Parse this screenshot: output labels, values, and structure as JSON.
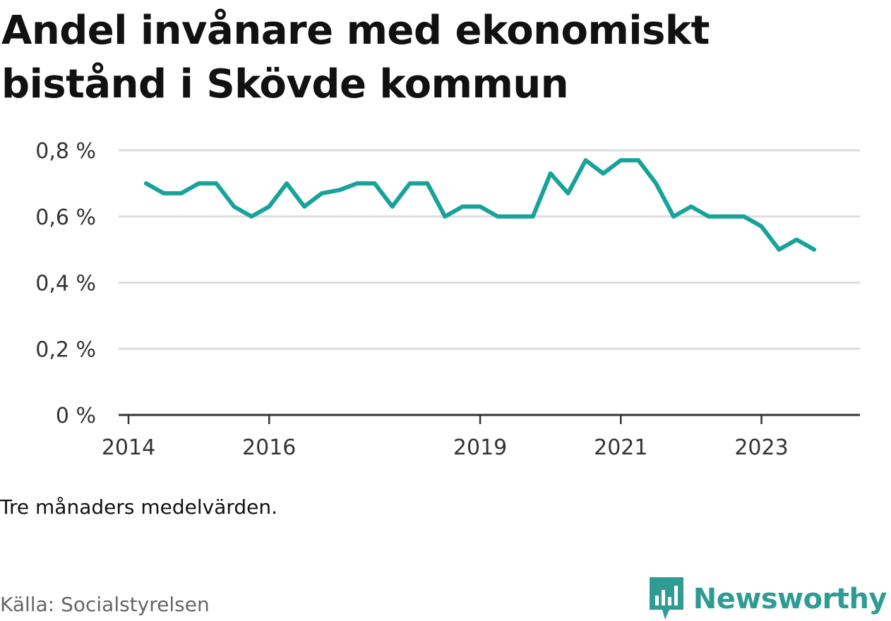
{
  "title": "Andel invånare med ekonomiskt bistånd i Skövde kommun",
  "note": "Tre månaders medelvärden.",
  "source": "Källa: Socialstyrelsen",
  "brand": {
    "name": "Newsworthy",
    "icon": "newsworthy-chart-bubble-icon"
  },
  "colors": {
    "line": "#17a39a",
    "grid": "#dddddd",
    "axis": "#333333",
    "brand": "#2f9c94"
  },
  "chart_data": {
    "type": "line",
    "title": "Andel invånare med ekonomiskt bistånd i Skövde kommun",
    "xlabel": "",
    "ylabel": "",
    "ylim": [
      0,
      0.8
    ],
    "y_ticks": [
      0,
      0.2,
      0.4,
      0.6,
      0.8
    ],
    "y_tick_labels": [
      "0 %",
      "0,2 %",
      "0,4 %",
      "0,6 %",
      "0,8 %"
    ],
    "x_ticks": [
      2014,
      2016,
      2019,
      2021,
      2023
    ],
    "x_tick_labels": [
      "2014",
      "2016",
      "2019",
      "2021",
      "2023"
    ],
    "grid": true,
    "series": [
      {
        "x": [
          2014.25,
          2014.5,
          2014.75,
          2015.0,
          2015.25,
          2015.5,
          2015.75,
          2016.0,
          2016.25,
          2016.5,
          2016.75,
          2017.0,
          2017.25,
          2017.5,
          2017.75,
          2018.0,
          2018.25,
          2018.5,
          2018.75,
          2019.0,
          2019.25,
          2019.5,
          2019.75,
          2020.0,
          2020.25,
          2020.5,
          2020.75,
          2021.0,
          2021.25,
          2021.5,
          2021.75,
          2022.0,
          2022.25,
          2022.5,
          2022.75,
          2023.0,
          2023.25,
          2023.5,
          2023.75
        ],
        "values": [
          0.7,
          0.67,
          0.67,
          0.7,
          0.7,
          0.63,
          0.6,
          0.63,
          0.7,
          0.63,
          0.67,
          0.68,
          0.7,
          0.7,
          0.63,
          0.7,
          0.7,
          0.6,
          0.63,
          0.63,
          0.6,
          0.6,
          0.6,
          0.73,
          0.67,
          0.77,
          0.73,
          0.77,
          0.77,
          0.7,
          0.6,
          0.63,
          0.6,
          0.6,
          0.6,
          0.57,
          0.5,
          0.53,
          0.5
        ]
      }
    ]
  }
}
